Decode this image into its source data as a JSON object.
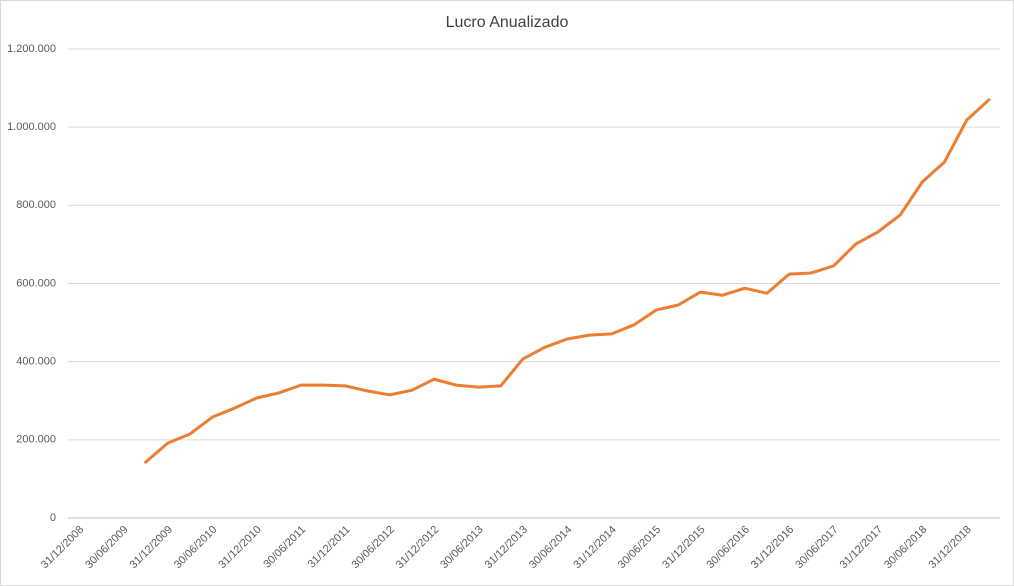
{
  "chart_data": {
    "type": "line",
    "title": "Lucro Anualizado",
    "categories": [
      "31/12/2008",
      null,
      "30/06/2009",
      null,
      "31/12/2009",
      null,
      "30/06/2010",
      null,
      "31/12/2010",
      null,
      "30/06/2011",
      null,
      "31/12/2011",
      null,
      "30/06/2012",
      null,
      "31/12/2012",
      null,
      "30/06/2013",
      null,
      "31/12/2013",
      null,
      "30/06/2014",
      null,
      "31/12/2014",
      null,
      "30/06/2015",
      null,
      "31/12/2015",
      null,
      "30/06/2016",
      null,
      "31/12/2016",
      null,
      "30/06/2017",
      null,
      "31/12/2017",
      null,
      "30/06/2018",
      null,
      "31/12/2018",
      null
    ],
    "series": [
      {
        "name": "Lucro Anualizado",
        "color": "#ed7d31",
        "values": [
          null,
          null,
          null,
          143000,
          192000,
          215000,
          258000,
          281000,
          307000,
          320000,
          340000,
          340000,
          338000,
          325000,
          315000,
          327000,
          355000,
          340000,
          335000,
          338000,
          407000,
          437000,
          458000,
          468000,
          471000,
          494000,
          532000,
          545000,
          578000,
          570000,
          588000,
          575000,
          624000,
          627000,
          645000,
          701000,
          732000,
          775000,
          860000,
          911000,
          1018000,
          1070000
        ]
      }
    ],
    "ylim": [
      0,
      1200000
    ],
    "yticks": [
      0,
      {
        "value": 200000,
        "label": "200.000"
      },
      {
        "value": 400000,
        "label": "400.000"
      },
      {
        "value": 600000,
        "label": "600.000"
      },
      {
        "value": 800000,
        "label": "800.000"
      },
      {
        "value": 1000000,
        "label": "1.000.000"
      },
      {
        "value": 1200000,
        "label": "1.200.000"
      }
    ],
    "grid": true
  }
}
